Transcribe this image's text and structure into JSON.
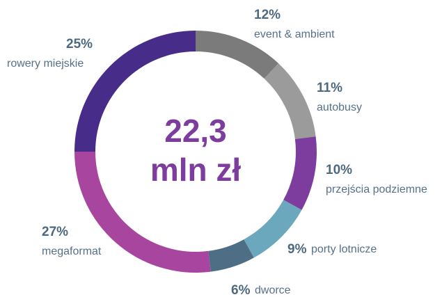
{
  "chart_data": {
    "type": "donut",
    "categories": [
      "event & ambient",
      "autobusy",
      "przejścia podziemne",
      "porty lotnicze",
      "dworce",
      "megaformat",
      "rowery miejskie"
    ],
    "values": [
      12,
      11,
      10,
      9,
      6,
      27,
      25
    ],
    "value_labels": [
      "12%",
      "11%",
      "10%",
      "9%",
      "6%",
      "27%",
      "25%"
    ],
    "colors": [
      "#7b7b7b",
      "#9b9b9b",
      "#7c3d9e",
      "#6ba8be",
      "#4e6e86",
      "#a8469f",
      "#482c89"
    ],
    "center_label": [
      "22,3",
      "mln zł"
    ]
  }
}
